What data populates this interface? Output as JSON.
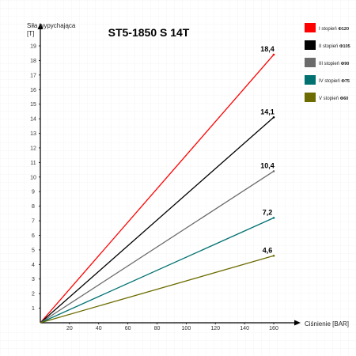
{
  "chart_data": {
    "type": "line",
    "title": "ST5-1850 S 14T",
    "ylabel_line1": "Siła wypychająca",
    "ylabel_line2": "[T]",
    "xlabel": "Ciśnienie [BAR]",
    "xlim": [
      0,
      160
    ],
    "ylim": [
      0,
      19
    ],
    "x_ticks": [
      20,
      40,
      60,
      80,
      100,
      120,
      140,
      160
    ],
    "y_ticks": [
      1,
      2,
      3,
      4,
      5,
      6,
      7,
      8,
      9,
      10,
      11,
      12,
      13,
      14,
      15,
      16,
      17,
      18,
      19
    ],
    "grid": true,
    "legend_position": "top-right",
    "series": [
      {
        "name": "I stopień",
        "diameter": "Φ120",
        "color": "#ff0000",
        "x": [
          0,
          160
        ],
        "y": [
          0,
          18.4
        ],
        "end_label": "18,4"
      },
      {
        "name": "II stopień",
        "diameter": "Φ105",
        "color": "#000000",
        "x": [
          0,
          160
        ],
        "y": [
          0,
          14.1
        ],
        "end_label": "14,1"
      },
      {
        "name": "III stopień",
        "diameter": "Φ90",
        "color": "#6b6b6b",
        "x": [
          0,
          160
        ],
        "y": [
          0,
          10.4
        ],
        "end_label": "10,4"
      },
      {
        "name": "IV stopień",
        "diameter": "Φ75",
        "color": "#007070",
        "x": [
          0,
          160
        ],
        "y": [
          0,
          7.2
        ],
        "end_label": "7,2"
      },
      {
        "name": "V stopień",
        "diameter": "Φ60",
        "color": "#6b6b00",
        "x": [
          0,
          160
        ],
        "y": [
          0,
          4.6
        ],
        "end_label": "4,6"
      }
    ]
  }
}
